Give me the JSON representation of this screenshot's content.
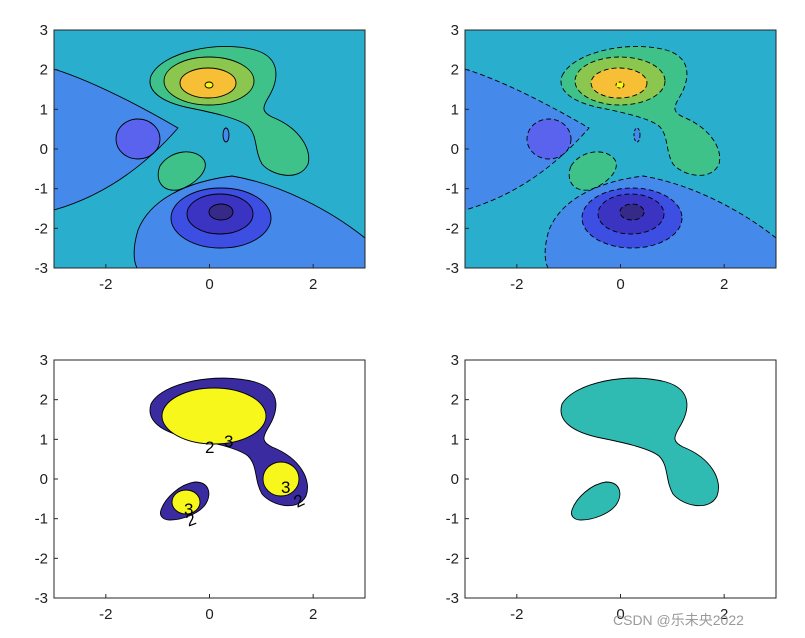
{
  "figure": {
    "layout": "2x2 subplot grid",
    "watermark": "CSDN @乐未央2022"
  },
  "colors": {
    "background": "#ffffff",
    "axis": "#262626",
    "contour_line": "#000000",
    "parula_levels": [
      "#352a87",
      "#3d4fe3",
      "#5a63ee",
      "#4589ea",
      "#29afcd",
      "#3fc28a",
      "#8bc74e",
      "#c8bf3a",
      "#f7bf35",
      "#f9fb0e"
    ],
    "single_fill": "#2fbbb2",
    "band_dark": "#3b2ba0",
    "band_yellow": "#f7f71c"
  },
  "chart_data": [
    {
      "type": "contourf",
      "function": "peaks",
      "line_style": "solid",
      "xlim": [
        -3,
        3
      ],
      "ylim": [
        -3,
        3
      ],
      "xticks": [
        -2,
        0,
        2
      ],
      "yticks": [
        -3,
        -2,
        -1,
        0,
        1,
        2,
        3
      ],
      "xtick_labels": [
        "-2",
        "0",
        "2"
      ],
      "ytick_labels": [
        "3",
        "2",
        "1",
        "0",
        "-1",
        "-2",
        "-3"
      ]
    },
    {
      "type": "contourf",
      "function": "peaks",
      "line_style": "dashed",
      "xlim": [
        -3,
        3
      ],
      "ylim": [
        -3,
        3
      ],
      "xticks": [
        -2,
        0,
        2
      ],
      "yticks": [
        -3,
        -2,
        -1,
        0,
        1,
        2,
        3
      ],
      "xtick_labels": [
        "-2",
        "0",
        "2"
      ],
      "ytick_labels": [
        "3",
        "2",
        "1",
        "0",
        "-1",
        "-2",
        "-3"
      ]
    },
    {
      "type": "contourf",
      "function": "peaks",
      "levels": [
        2,
        3
      ],
      "line_style": "solid",
      "contour_labels": [
        "2",
        "3",
        "3",
        "2",
        "3",
        "2"
      ],
      "xlim": [
        -3,
        3
      ],
      "ylim": [
        -3,
        3
      ],
      "xticks": [
        -2,
        0,
        2
      ],
      "yticks": [
        -3,
        -2,
        -1,
        0,
        1,
        2,
        3
      ],
      "xtick_labels": [
        "-2",
        "0",
        "2"
      ],
      "ytick_labels": [
        "3",
        "2",
        "1",
        "0",
        "-1",
        "-2",
        "-3"
      ]
    },
    {
      "type": "contourf",
      "function": "peaks",
      "levels": [
        2
      ],
      "line_style": "solid",
      "xlim": [
        -3,
        3
      ],
      "ylim": [
        -3,
        3
      ],
      "xticks": [
        -2,
        0,
        2
      ],
      "yticks": [
        -3,
        -2,
        -1,
        0,
        1,
        2,
        3
      ],
      "xtick_labels": [
        "-2",
        "0",
        "2"
      ],
      "ytick_labels": [
        "3",
        "2",
        "1",
        "0",
        "-1",
        "-2",
        "-3"
      ]
    }
  ]
}
